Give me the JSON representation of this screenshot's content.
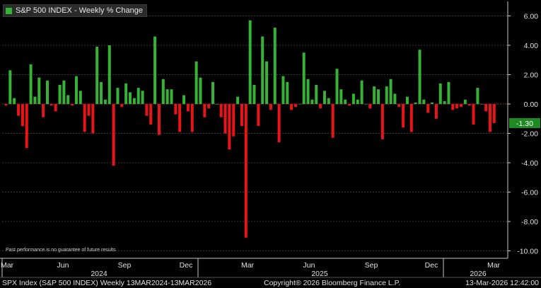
{
  "legend": {
    "label": "S&P 500 INDEX - Weekly % Change"
  },
  "disclaimer": "Past performance is no guarantee of future results",
  "footer": {
    "left": "SPX Index (S&P 500 INDEX) Weekly 13MAR2024-13MAR2026",
    "center": "Copyright® 2026 Bloomberg Finance L.P.",
    "right": "13-Mar-2026 12:42:00"
  },
  "colors": {
    "positive": "#36b236",
    "negative": "#e8141a",
    "grid": "#3c3c3c",
    "axis": "#c8c8c8",
    "last_label_bg": "#1e8a22"
  },
  "chart_data": {
    "type": "bar",
    "title": "S&P 500 INDEX - Weekly % Change",
    "ylim": [
      -10,
      7
    ],
    "y_ticks": [
      "6.00",
      "4.00",
      "2.00",
      "0.00",
      "-2.00",
      "-4.00",
      "-6.00",
      "-8.00",
      "-10.00"
    ],
    "grid": true,
    "x_month_labels": [
      "Mar",
      "Jun",
      "Sep",
      "Dec",
      "Mar",
      "Jun",
      "Sep",
      "Dec",
      "Mar"
    ],
    "x_year_labels": [
      "2024",
      "2025",
      "2026"
    ],
    "last_value_label": "-1.30",
    "series": [
      {
        "values": [
          -0.1,
          2.3,
          0.4,
          -0.8,
          -1.5,
          -3.0,
          2.7,
          0.5,
          1.8,
          -0.9,
          1.6,
          -0.1,
          -0.5,
          1.3,
          1.6,
          0.6,
          -0.1,
          1.9,
          0.9,
          -1.9,
          -0.8,
          -2.0,
          3.9,
          1.5,
          0.3,
          4.0,
          -4.2,
          1.1,
          -0.2,
          1.4,
          0.8,
          0.4,
          1.1,
          0.9,
          -0.8,
          -1.4,
          4.6,
          -2.1,
          1.7,
          1.0,
          1.0,
          -0.7,
          -1.9,
          0.6,
          -0.5,
          -1.9,
          2.9,
          1.8,
          -0.9,
          -0.3,
          1.5,
          0.0,
          -0.9,
          -2.0,
          -3.1,
          -2.2,
          0.5,
          -1.5,
          -9.1,
          5.7,
          1.3,
          -1.5,
          4.6,
          2.9,
          -0.4,
          5.2,
          -2.6,
          1.9,
          1.5,
          -0.4,
          -0.2,
          0.0,
          3.5,
          1.7,
          0.3,
          1.3,
          -0.3,
          0.9,
          0.4,
          -2.3,
          2.4,
          1.0,
          0.3,
          -0.1,
          0.7,
          0.3,
          1.6,
          0.0,
          -0.3,
          1.2,
          1.0,
          -2.4,
          1.2,
          1.7,
          0.7,
          -0.2,
          -1.6,
          0.5,
          -1.9,
          0.1,
          3.7,
          0.3,
          -0.6,
          0.1,
          -1.0,
          1.4,
          0.2,
          1.5,
          -0.4,
          -0.3,
          -0.2,
          0.3,
          -0.1,
          -1.4,
          1.1,
          0.0,
          -0.5,
          -1.9,
          -1.3
        ]
      }
    ]
  }
}
